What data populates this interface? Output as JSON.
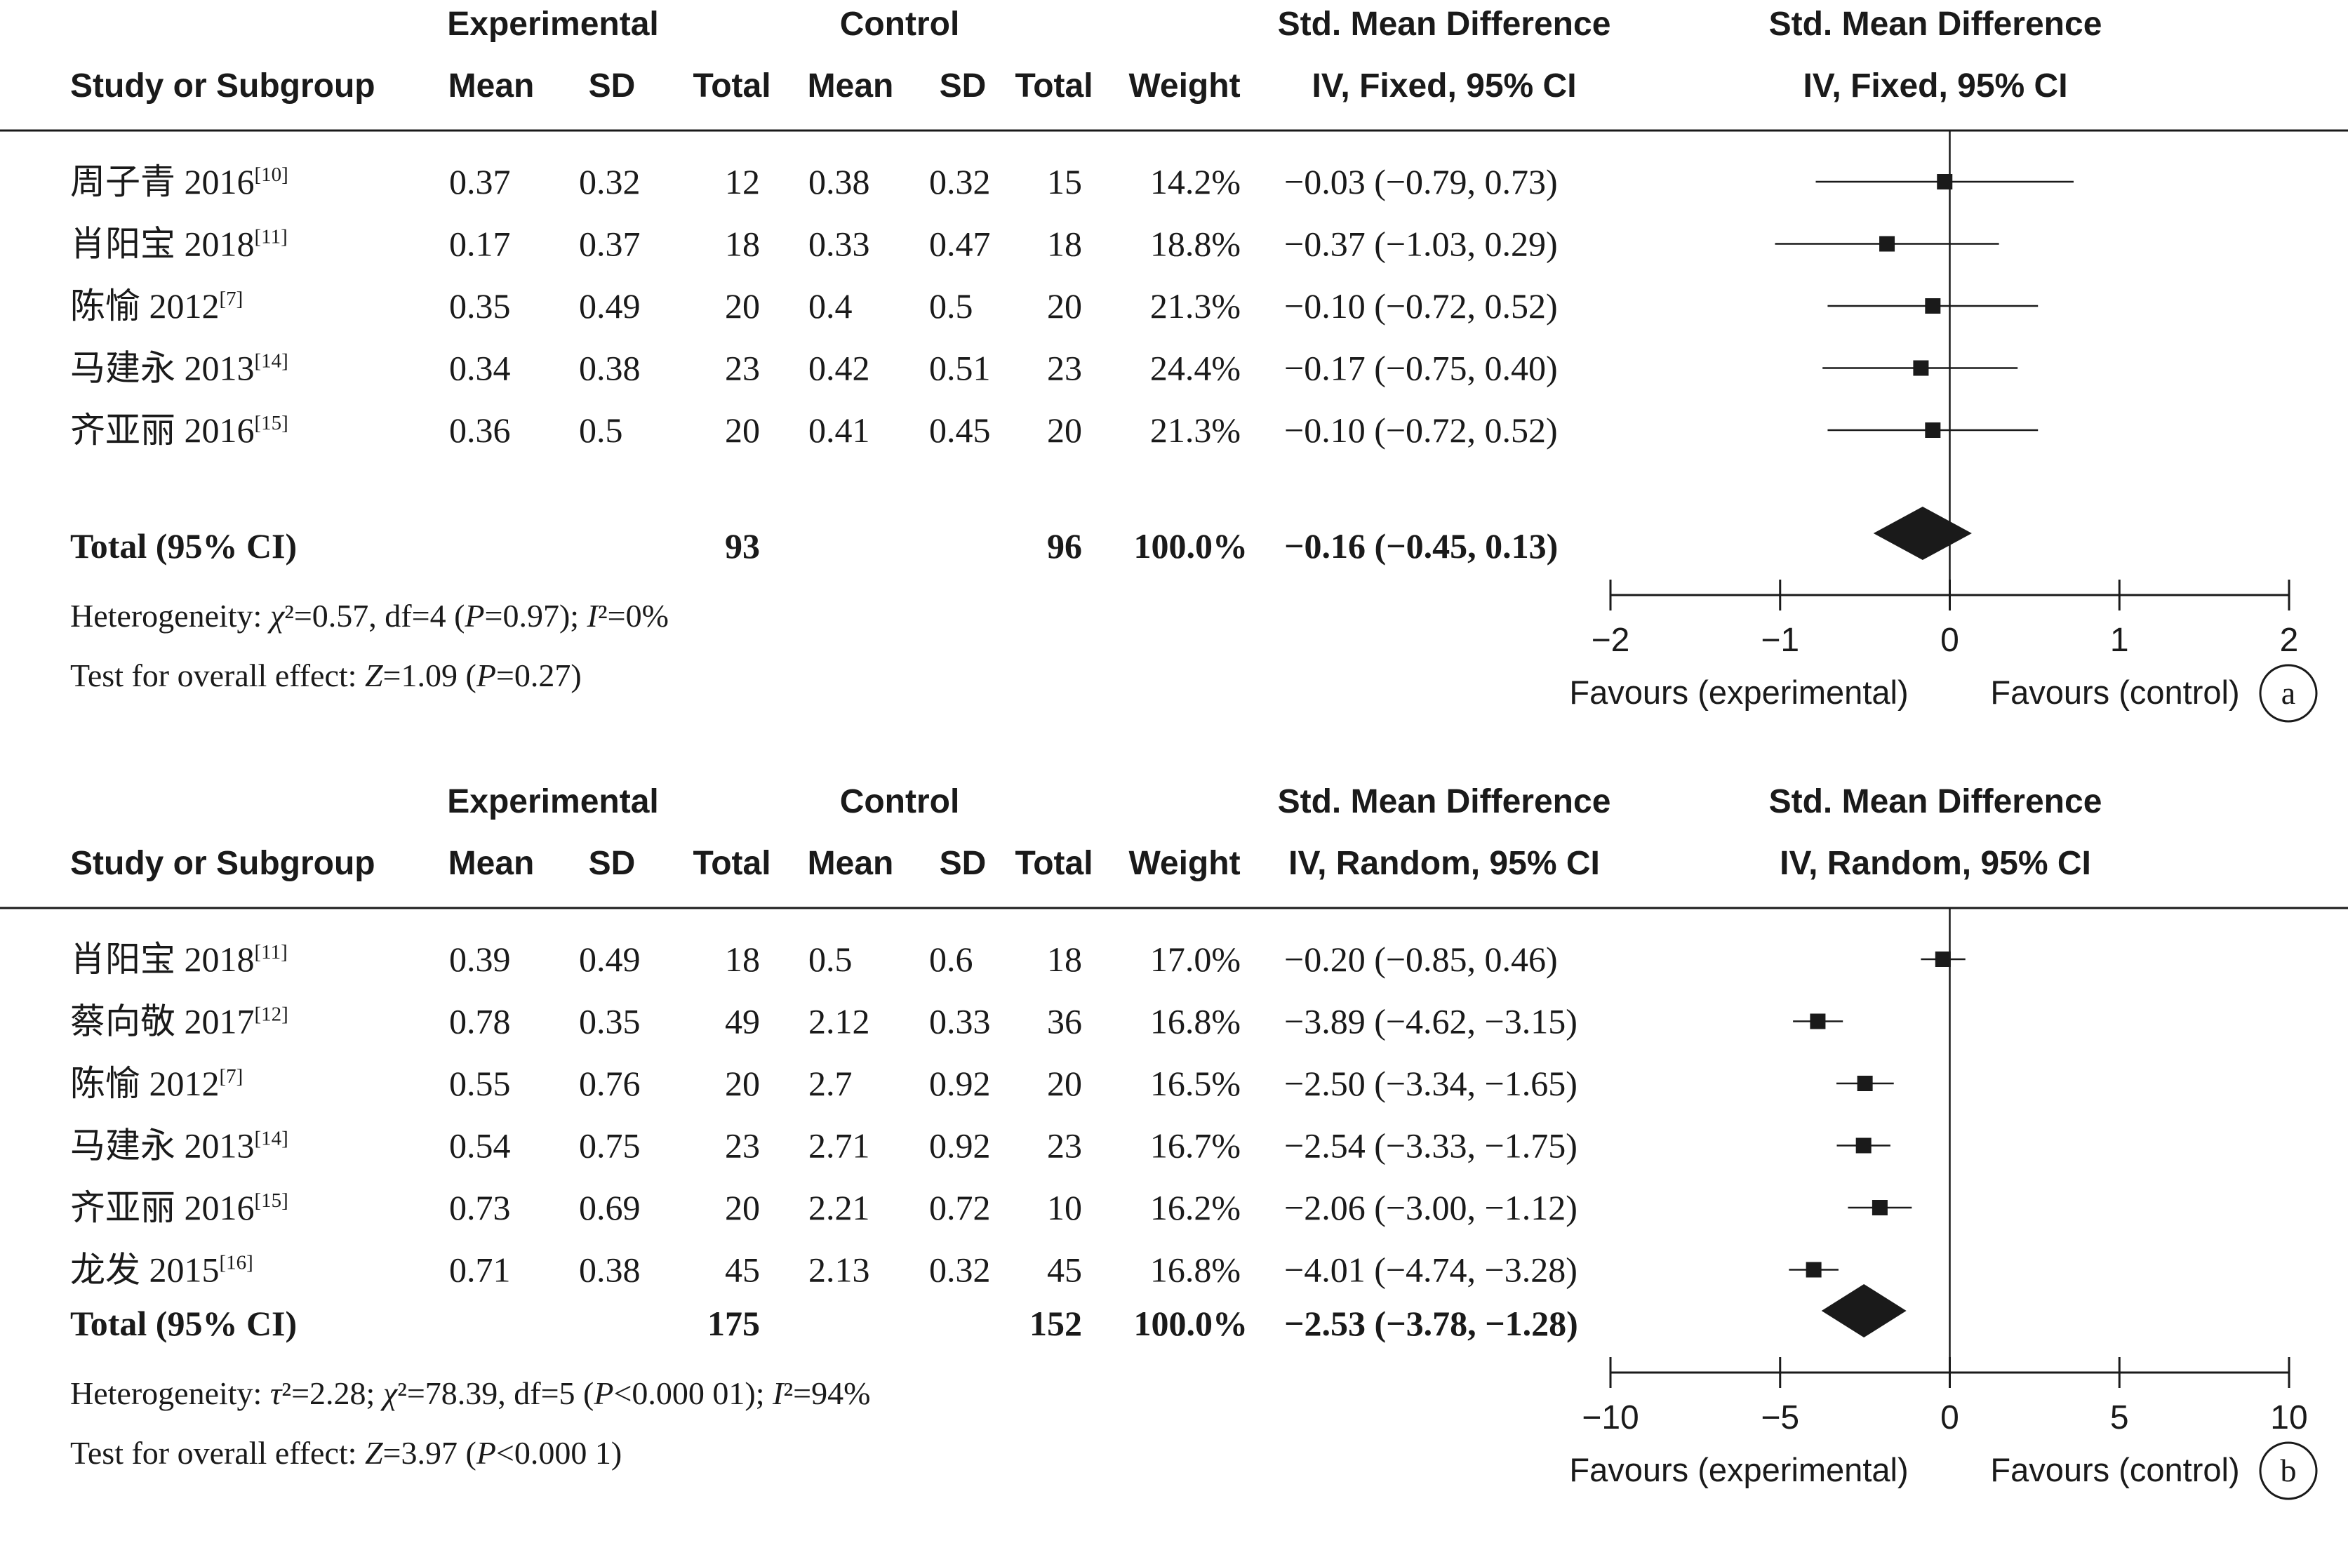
{
  "panels": [
    {
      "headers": {
        "group_experimental": "Experimental",
        "group_control": "Control",
        "smd_table": "Std. Mean Difference",
        "smd_plot": "Std. Mean Difference",
        "study": "Study or Subgroup",
        "mean_e": "Mean",
        "sd_e": "SD",
        "total_e": "Total",
        "mean_c": "Mean",
        "sd_c": "SD",
        "total_c": "Total",
        "weight": "Weight",
        "method_table": "IV, Fixed, 95% CI",
        "method_plot": "IV, Fixed, 95% CI"
      },
      "rows": [
        {
          "study": "周子青 2016",
          "ref": "[10]",
          "mean_e": "0.37",
          "sd_e": "0.32",
          "n_e": "12",
          "mean_c": "0.38",
          "sd_c": "0.32",
          "n_c": "15",
          "weight": "14.2%",
          "ci": "−0.03 (−0.79, 0.73)"
        },
        {
          "study": "肖阳宝 2018",
          "ref": "[11]",
          "mean_e": "0.17",
          "sd_e": "0.37",
          "n_e": "18",
          "mean_c": "0.33",
          "sd_c": "0.47",
          "n_c": "18",
          "weight": "18.8%",
          "ci": "−0.37 (−1.03, 0.29)"
        },
        {
          "study": "陈愉 2012",
          "ref": "[7]",
          "mean_e": "0.35",
          "sd_e": "0.49",
          "n_e": "20",
          "mean_c": "0.4",
          "sd_c": "0.5",
          "n_c": "20",
          "weight": "21.3%",
          "ci": "−0.10 (−0.72, 0.52)"
        },
        {
          "study": "马建永 2013",
          "ref": "[14]",
          "mean_e": "0.34",
          "sd_e": "0.38",
          "n_e": "23",
          "mean_c": "0.42",
          "sd_c": "0.51",
          "n_c": "23",
          "weight": "24.4%",
          "ci": "−0.17 (−0.75, 0.40)"
        },
        {
          "study": "齐亚丽 2016",
          "ref": "[15]",
          "mean_e": "0.36",
          "sd_e": "0.5",
          "n_e": "20",
          "mean_c": "0.41",
          "sd_c": "0.45",
          "n_c": "20",
          "weight": "21.3%",
          "ci": "−0.10 (−0.72, 0.52)"
        }
      ],
      "total": {
        "label": "Total (95% CI)",
        "n_e": "93",
        "n_c": "96",
        "weight": "100.0%",
        "ci": "−0.16 (−0.45, 0.13)"
      },
      "heterogeneity": "Heterogeneity: χ²=0.57, df=4 (P=0.97); I²=0%",
      "overall_effect": "Test for overall effect: Z=1.09 (P=0.27)",
      "favours_left": "Favours (experimental)",
      "favours_right": "Favours (control)",
      "panel_label": "a"
    },
    {
      "headers": {
        "group_experimental": "Experimental",
        "group_control": "Control",
        "smd_table": "Std. Mean Difference",
        "smd_plot": "Std. Mean Difference",
        "study": "Study or Subgroup",
        "mean_e": "Mean",
        "sd_e": "SD",
        "total_e": "Total",
        "mean_c": "Mean",
        "sd_c": "SD",
        "total_c": "Total",
        "weight": "Weight",
        "method_table": "IV, Random, 95% CI",
        "method_plot": "IV, Random, 95% CI"
      },
      "rows": [
        {
          "study": "肖阳宝 2018",
          "ref": "[11]",
          "mean_e": "0.39",
          "sd_e": "0.49",
          "n_e": "18",
          "mean_c": "0.5",
          "sd_c": "0.6",
          "n_c": "18",
          "weight": "17.0%",
          "ci": "−0.20 (−0.85, 0.46)"
        },
        {
          "study": "蔡向敬 2017",
          "ref": "[12]",
          "mean_e": "0.78",
          "sd_e": "0.35",
          "n_e": "49",
          "mean_c": "2.12",
          "sd_c": "0.33",
          "n_c": "36",
          "weight": "16.8%",
          "ci": "−3.89 (−4.62, −3.15)"
        },
        {
          "study": "陈愉 2012",
          "ref": "[7]",
          "mean_e": "0.55",
          "sd_e": "0.76",
          "n_e": "20",
          "mean_c": "2.7",
          "sd_c": "0.92",
          "n_c": "20",
          "weight": "16.5%",
          "ci": "−2.50 (−3.34, −1.65)"
        },
        {
          "study": "马建永 2013",
          "ref": "[14]",
          "mean_e": "0.54",
          "sd_e": "0.75",
          "n_e": "23",
          "mean_c": "2.71",
          "sd_c": "0.92",
          "n_c": "23",
          "weight": "16.7%",
          "ci": "−2.54 (−3.33, −1.75)"
        },
        {
          "study": "齐亚丽 2016",
          "ref": "[15]",
          "mean_e": "0.73",
          "sd_e": "0.69",
          "n_e": "20",
          "mean_c": "2.21",
          "sd_c": "0.72",
          "n_c": "10",
          "weight": "16.2%",
          "ci": "−2.06 (−3.00, −1.12)"
        },
        {
          "study": "龙发 2015",
          "ref": "[16]",
          "mean_e": "0.71",
          "sd_e": "0.38",
          "n_e": "45",
          "mean_c": "2.13",
          "sd_c": "0.32",
          "n_c": "45",
          "weight": "16.8%",
          "ci": "−4.01 (−4.74, −3.28)"
        }
      ],
      "total": {
        "label": "Total (95% CI)",
        "n_e": "175",
        "n_c": "152",
        "weight": "100.0%",
        "ci": "−2.53 (−3.78, −1.28)"
      },
      "heterogeneity": "Heterogeneity: τ²=2.28; χ²=78.39, df=5 (P<0.000 01); I²=94%",
      "overall_effect": "Test for overall effect: Z=3.97 (P<0.000 1)",
      "favours_left": "Favours (experimental)",
      "favours_right": "Favours (control)",
      "panel_label": "b"
    }
  ],
  "chart_data": [
    {
      "type": "scatter",
      "xlim": [
        -2,
        2
      ],
      "xticks": [
        -2,
        -1,
        0,
        1,
        2
      ],
      "xtick_labels": [
        "−2",
        "−1",
        "0",
        "1",
        "2"
      ],
      "studies": [
        {
          "label": "周子青 2016",
          "est": -0.03,
          "lo": -0.79,
          "hi": 0.73,
          "weight": 14.2
        },
        {
          "label": "肖阳宝 2018",
          "est": -0.37,
          "lo": -1.03,
          "hi": 0.29,
          "weight": 18.8
        },
        {
          "label": "陈愉 2012",
          "est": -0.1,
          "lo": -0.72,
          "hi": 0.52,
          "weight": 21.3
        },
        {
          "label": "马建永 2013",
          "est": -0.17,
          "lo": -0.75,
          "hi": 0.4,
          "weight": 24.4
        },
        {
          "label": "齐亚丽 2016",
          "est": -0.1,
          "lo": -0.72,
          "hi": 0.52,
          "weight": 21.3
        }
      ],
      "pooled": {
        "est": -0.16,
        "lo": -0.45,
        "hi": 0.13
      }
    },
    {
      "type": "scatter",
      "xlim": [
        -10,
        10
      ],
      "xticks": [
        -10,
        -5,
        0,
        5,
        10
      ],
      "xtick_labels": [
        "−10",
        "−5",
        "0",
        "5",
        "10"
      ],
      "studies": [
        {
          "label": "肖阳宝 2018",
          "est": -0.2,
          "lo": -0.85,
          "hi": 0.46,
          "weight": 17.0
        },
        {
          "label": "蔡向敬 2017",
          "est": -3.89,
          "lo": -4.62,
          "hi": -3.15,
          "weight": 16.8
        },
        {
          "label": "陈愉 2012",
          "est": -2.5,
          "lo": -3.34,
          "hi": -1.65,
          "weight": 16.5
        },
        {
          "label": "马建永 2013",
          "est": -2.54,
          "lo": -3.33,
          "hi": -1.75,
          "weight": 16.7
        },
        {
          "label": "齐亚丽 2016",
          "est": -2.06,
          "lo": -3.0,
          "hi": -1.12,
          "weight": 16.2
        },
        {
          "label": "龙发 2015",
          "est": -4.01,
          "lo": -4.74,
          "hi": -3.28,
          "weight": 16.8
        }
      ],
      "pooled": {
        "est": -2.53,
        "lo": -3.78,
        "hi": -1.28
      }
    }
  ]
}
